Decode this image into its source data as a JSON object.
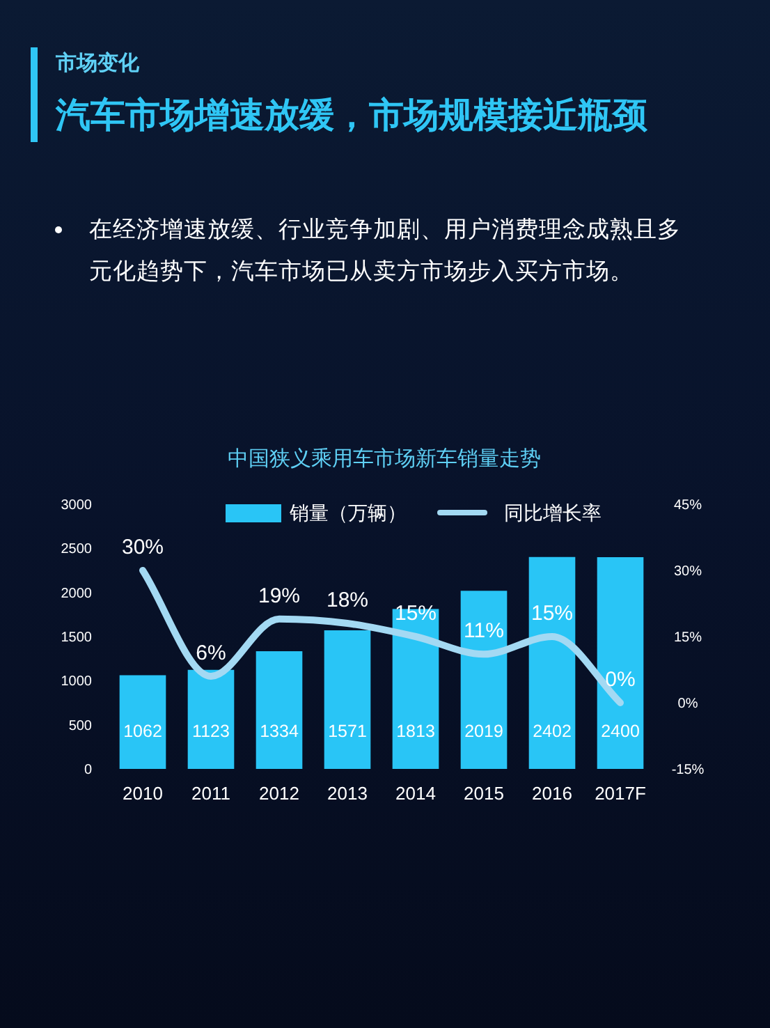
{
  "chart_data": {
    "type": "bar",
    "title": "中国狭义乘用车市场新车销量走势",
    "annotations": [
      "市场变化",
      "汽车市场增速放缓，市场规模接近瓶颈",
      "在经济增速放缓、行业竞争加剧、用户消费理念成熟且多元化趋势下，汽车市场已从卖方市场步入买方市场。"
    ],
    "categories": [
      "2010",
      "2011",
      "2012",
      "2013",
      "2014",
      "2015",
      "2016",
      "2017F"
    ],
    "series": [
      {
        "name": "销量（万辆）",
        "color": "#29c5f6",
        "values": [
          1062,
          1123,
          1334,
          1571,
          1813,
          2019,
          2402,
          2400
        ],
        "value_labels": [
          "1062",
          "1123",
          "1334",
          "1571",
          "1813",
          "2019",
          "2402",
          "2400"
        ]
      },
      {
        "name": "同比增长率",
        "type": "line",
        "axis": "y2",
        "color": "#a3d9f3",
        "values": [
          30,
          6,
          19,
          18,
          15,
          11,
          15,
          0
        ],
        "value_labels": [
          "30%",
          "6%",
          "19%",
          "18%",
          "15%",
          "11%",
          "15%",
          "0%"
        ]
      }
    ],
    "ylim": [
      0,
      3000
    ],
    "yticks": [
      0,
      500,
      1000,
      1500,
      2000,
      2500,
      3000
    ],
    "y2lim": [
      -15,
      45
    ],
    "y2ticks": [
      {
        "value": -15,
        "label": "-15%"
      },
      {
        "value": 0,
        "label": "0%"
      },
      {
        "value": 15,
        "label": "15%"
      },
      {
        "value": 30,
        "label": "30%"
      },
      {
        "value": 45,
        "label": "45%"
      }
    ],
    "legend": "top",
    "grid": false,
    "marker": "none"
  }
}
